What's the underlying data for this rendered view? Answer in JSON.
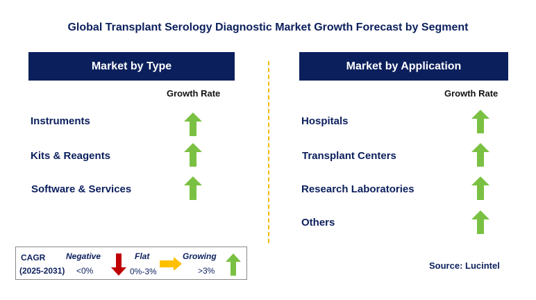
{
  "title": "Global Transplant Serology Diagnostic Market Growth Forecast by Segment",
  "left_panel": {
    "header": "Market by Type",
    "growth_label": "Growth Rate",
    "items": [
      {
        "label": "Instruments",
        "trend": "growing"
      },
      {
        "label": "Kits & Reagents",
        "trend": "growing"
      },
      {
        "label": "Software & Services",
        "trend": "growing"
      }
    ]
  },
  "right_panel": {
    "header": "Market by Application",
    "growth_label": "Growth Rate",
    "items": [
      {
        "label": "Hospitals",
        "trend": "growing"
      },
      {
        "label": "Transplant Centers",
        "trend": "growing"
      },
      {
        "label": "Research Laboratories",
        "trend": "growing"
      },
      {
        "label": "Others",
        "trend": "growing"
      }
    ]
  },
  "legend": {
    "cagr_label": "CAGR",
    "period": "(2025-2031)",
    "negative": {
      "label": "Negative",
      "range": "<0%",
      "color": "#c00000",
      "icon": "arrow-down-icon"
    },
    "flat": {
      "label": "Flat",
      "range": "0%-3%",
      "color": "#ffc000",
      "icon": "arrow-right-icon"
    },
    "growing": {
      "label": "Growing",
      "range": ">3%",
      "color": "#7ac143",
      "icon": "arrow-up-icon"
    }
  },
  "source": "Source: Lucintel",
  "colors": {
    "header_bg": "#0b1f5c",
    "divider": "#f5b800",
    "arrow_up": "#7ac143"
  }
}
